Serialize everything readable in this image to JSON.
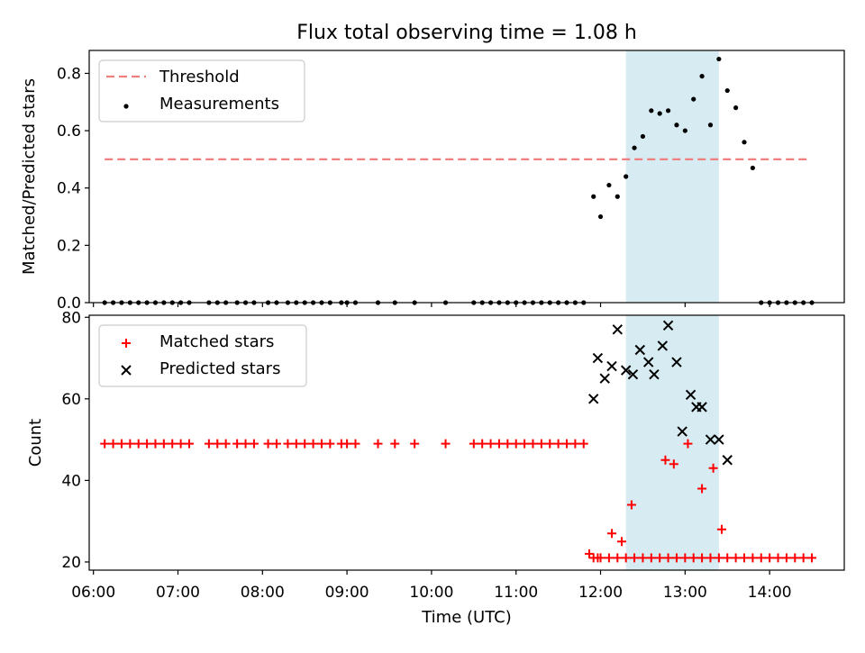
{
  "figure": {
    "title": "Flux total observing time = 1.08 h",
    "xlabel": "Time (UTC)"
  },
  "chart_data": [
    {
      "type": "scatter",
      "ylabel": "Matched/Predicted stars",
      "xlim": [
        "05:57",
        "14:53"
      ],
      "ylim": [
        0,
        0.88
      ],
      "yticks": [
        0.0,
        0.2,
        0.4,
        0.6,
        0.8
      ],
      "ytick_labels": [
        "0.0",
        "0.2",
        "0.4",
        "0.6",
        "0.8"
      ],
      "grid": false,
      "legend": "top-left",
      "shaded_span": {
        "x": [
          "12:18",
          "13:24"
        ],
        "color": "#add8e6"
      },
      "threshold": {
        "name": "Threshold",
        "y": 0.5,
        "x": [
          "06:08",
          "14:28"
        ],
        "color": "#f08080",
        "style": "dashed"
      },
      "series": [
        {
          "name": "Measurements",
          "marker": "dot",
          "color": "#000000",
          "x": [
            "06:08",
            "06:14",
            "06:20",
            "06:26",
            "06:32",
            "06:38",
            "06:44",
            "06:50",
            "06:56",
            "07:02",
            "07:08",
            "07:22",
            "07:28",
            "07:34",
            "07:42",
            "07:48",
            "07:54",
            "08:04",
            "08:10",
            "08:18",
            "08:24",
            "08:30",
            "08:36",
            "08:42",
            "08:48",
            "08:56",
            "09:00",
            "09:06",
            "09:22",
            "09:34",
            "09:48",
            "10:10",
            "10:30",
            "10:36",
            "10:42",
            "10:48",
            "10:54",
            "11:00",
            "11:06",
            "11:12",
            "11:18",
            "11:24",
            "11:30",
            "11:36",
            "11:42",
            "11:48",
            "11:55",
            "12:00",
            "12:06",
            "12:12",
            "12:18",
            "12:24",
            "12:30",
            "12:36",
            "12:42",
            "12:48",
            "12:54",
            "13:00",
            "13:06",
            "13:12",
            "13:18",
            "13:24",
            "13:30",
            "13:36",
            "13:42",
            "13:48",
            "13:54",
            "14:00",
            "14:06",
            "14:12",
            "14:18",
            "14:24",
            "14:30"
          ],
          "y": [
            0,
            0,
            0,
            0,
            0,
            0,
            0,
            0,
            0,
            0,
            0,
            0,
            0,
            0,
            0,
            0,
            0,
            0,
            0,
            0,
            0,
            0,
            0,
            0,
            0,
            0,
            0,
            0,
            0,
            0,
            0,
            0,
            0,
            0,
            0,
            0,
            0,
            0,
            0,
            0,
            0,
            0,
            0,
            0,
            0,
            0,
            0.37,
            0.3,
            0.41,
            0.37,
            0.44,
            0.54,
            0.58,
            0.67,
            0.66,
            0.67,
            0.62,
            0.6,
            0.71,
            0.79,
            0.62,
            0.85,
            0.74,
            0.68,
            0.56,
            0.47,
            0,
            0,
            0,
            0,
            0,
            0,
            0
          ]
        }
      ]
    },
    {
      "type": "scatter",
      "ylabel": "Count",
      "xlim": [
        "05:57",
        "14:53"
      ],
      "ylim": [
        18,
        80.5
      ],
      "yticks": [
        20,
        40,
        60,
        80
      ],
      "ytick_labels": [
        "20",
        "40",
        "60",
        "80"
      ],
      "xticks": [
        "06:00",
        "07:00",
        "08:00",
        "09:00",
        "10:00",
        "11:00",
        "12:00",
        "13:00",
        "14:00"
      ],
      "xtick_labels": [
        "06:00",
        "07:00",
        "08:00",
        "09:00",
        "10:00",
        "11:00",
        "12:00",
        "13:00",
        "14:00"
      ],
      "grid": false,
      "legend": "top-left",
      "shaded_span": {
        "x": [
          "12:18",
          "13:24"
        ],
        "color": "#add8e6"
      },
      "series": [
        {
          "name": "Matched stars",
          "marker": "plus",
          "color": "#ff0000",
          "x": [
            "06:08",
            "06:14",
            "06:20",
            "06:26",
            "06:32",
            "06:38",
            "06:44",
            "06:50",
            "06:56",
            "07:02",
            "07:08",
            "07:22",
            "07:28",
            "07:34",
            "07:42",
            "07:48",
            "07:54",
            "08:04",
            "08:10",
            "08:18",
            "08:24",
            "08:30",
            "08:36",
            "08:42",
            "08:48",
            "08:56",
            "09:00",
            "09:06",
            "09:22",
            "09:34",
            "09:48",
            "10:10",
            "10:30",
            "10:36",
            "10:42",
            "10:48",
            "10:54",
            "11:00",
            "11:06",
            "11:12",
            "11:18",
            "11:24",
            "11:30",
            "11:36",
            "11:42",
            "11:48",
            "11:55",
            "12:00",
            "12:06",
            "12:12",
            "12:18",
            "12:24",
            "12:30",
            "12:36",
            "12:42",
            "12:48",
            "12:54",
            "13:00",
            "13:06",
            "13:12",
            "13:18",
            "13:24",
            "13:30",
            "13:36",
            "13:42",
            "13:48",
            "13:54",
            "14:00",
            "14:06",
            "14:12",
            "14:18",
            "14:24",
            "14:30",
            "11:52",
            "11:58",
            "12:08",
            "12:15",
            "12:22",
            "12:46",
            "12:52",
            "13:02",
            "13:12",
            "13:20",
            "13:26"
          ],
          "y": [
            49,
            49,
            49,
            49,
            49,
            49,
            49,
            49,
            49,
            49,
            49,
            49,
            49,
            49,
            49,
            49,
            49,
            49,
            49,
            49,
            49,
            49,
            49,
            49,
            49,
            49,
            49,
            49,
            49,
            49,
            49,
            49,
            49,
            49,
            49,
            49,
            49,
            49,
            49,
            49,
            49,
            49,
            49,
            49,
            49,
            49,
            21,
            21,
            21,
            21,
            21,
            21,
            21,
            21,
            21,
            21,
            21,
            21,
            21,
            21,
            21,
            21,
            21,
            21,
            21,
            21,
            21,
            21,
            21,
            21,
            21,
            21,
            21,
            22,
            21,
            27,
            25,
            34,
            45,
            44,
            49,
            38,
            43,
            28
          ]
        },
        {
          "name": "Predicted stars",
          "marker": "x",
          "color": "#000000",
          "x": [
            "11:55",
            "11:58",
            "12:03",
            "12:08",
            "12:12",
            "12:18",
            "12:23",
            "12:28",
            "12:34",
            "12:38",
            "12:44",
            "12:48",
            "12:54",
            "12:58",
            "13:04",
            "13:08",
            "13:12",
            "13:18",
            "13:24",
            "13:30"
          ],
          "y": [
            60,
            70,
            65,
            68,
            77,
            67,
            66,
            72,
            69,
            66,
            73,
            78,
            69,
            52,
            61,
            58,
            58,
            50,
            50,
            45
          ]
        }
      ]
    }
  ]
}
